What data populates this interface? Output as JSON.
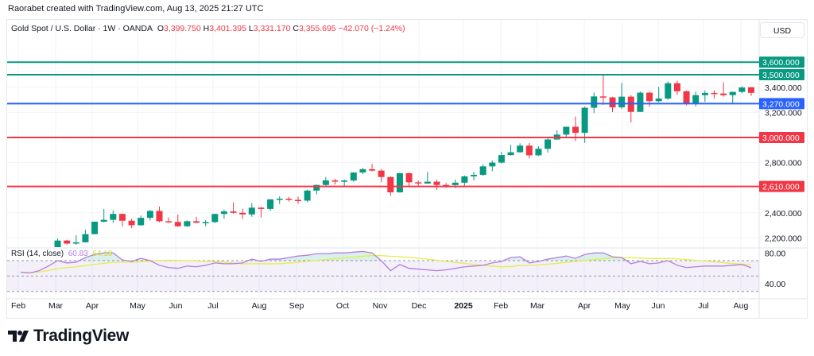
{
  "credit": "Raorabet created with TradingView.com, Aug 13, 2025 21:27 UTC",
  "legend": {
    "symbol": "Gold Spot / U.S. Dollar · 1W · OANDA",
    "o_label": "O",
    "o": "3,399.750",
    "h_label": "H",
    "h": "3,401.395",
    "l_label": "L",
    "l": "3,331.170",
    "c_label": "C",
    "c": "3,355.695",
    "change": "−42.070 (−1.24%)"
  },
  "currency_button": "USD",
  "rsi_legend": {
    "label": "RSI (14, close)",
    "value": "60.83",
    "ma_value": "64.18"
  },
  "logo_text": "TradingView",
  "colors": {
    "bull": "#089981",
    "bear": "#f23645",
    "blue": "#2962ff",
    "rsi": "#b57ee0",
    "rsi_ma": "#e4ee4a"
  },
  "chart_data": {
    "type": "candlestick",
    "interval": "1W",
    "price_ticks": [
      "2,200.000",
      "2,400.000",
      "2,800.000",
      "3,200.000",
      "3,400.000"
    ],
    "price_tick_values": [
      2200,
      2400,
      2800,
      3200,
      3400
    ],
    "levels": [
      {
        "value": 3600,
        "label": "3,600.000",
        "color": "#089981"
      },
      {
        "value": 3500,
        "label": "3,500.000",
        "color": "#089981"
      },
      {
        "value": 3270,
        "label": "3,270.000",
        "color": "#2962ff"
      },
      {
        "value": 3000,
        "label": "3,000.000",
        "color": "#f23645"
      },
      {
        "value": 2610,
        "label": "2,610.000",
        "color": "#f23645"
      }
    ],
    "time_labels": [
      "Feb",
      "Mar",
      "Apr",
      "May",
      "Jun",
      "Jul",
      "Aug",
      "Sep",
      "Oct",
      "Nov",
      "Dec",
      "2025",
      "Feb",
      "Mar",
      "Apr",
      "May",
      "Jun",
      "Jul",
      "Aug"
    ],
    "rsi_ticks": [
      "80.00",
      "40.00"
    ],
    "candles_ohlc": [
      [
        2039,
        2050,
        2015,
        2024
      ],
      [
        2024,
        2032,
        1984,
        2013
      ],
      [
        2013,
        2041,
        2010,
        2035
      ],
      [
        2035,
        2088,
        2024,
        2083
      ],
      [
        2083,
        2195,
        2079,
        2179
      ],
      [
        2179,
        2185,
        2146,
        2155
      ],
      [
        2155,
        2222,
        2146,
        2165
      ],
      [
        2165,
        2265,
        2163,
        2230
      ],
      [
        2230,
        2330,
        2228,
        2329
      ],
      [
        2329,
        2431,
        2325,
        2344
      ],
      [
        2344,
        2417,
        2320,
        2391
      ],
      [
        2391,
        2395,
        2291,
        2337
      ],
      [
        2337,
        2354,
        2277,
        2301
      ],
      [
        2301,
        2378,
        2296,
        2360
      ],
      [
        2360,
        2422,
        2339,
        2415
      ],
      [
        2415,
        2450,
        2325,
        2333
      ],
      [
        2333,
        2364,
        2320,
        2327
      ],
      [
        2327,
        2387,
        2286,
        2293
      ],
      [
        2293,
        2340,
        2287,
        2333
      ],
      [
        2333,
        2368,
        2316,
        2321
      ],
      [
        2321,
        2340,
        2293,
        2326
      ],
      [
        2326,
        2392,
        2318,
        2391
      ],
      [
        2391,
        2424,
        2353,
        2411
      ],
      [
        2411,
        2483,
        2394,
        2400
      ],
      [
        2400,
        2433,
        2353,
        2387
      ],
      [
        2387,
        2477,
        2368,
        2441
      ],
      [
        2441,
        2447,
        2364,
        2431
      ],
      [
        2431,
        2509,
        2415,
        2507
      ],
      [
        2507,
        2531,
        2470,
        2512
      ],
      [
        2512,
        2528,
        2490,
        2503
      ],
      [
        2503,
        2529,
        2472,
        2497
      ],
      [
        2497,
        2585,
        2485,
        2577
      ],
      [
        2577,
        2625,
        2547,
        2622
      ],
      [
        2622,
        2685,
        2615,
        2658
      ],
      [
        2658,
        2672,
        2625,
        2653
      ],
      [
        2653,
        2665,
        2603,
        2657
      ],
      [
        2657,
        2722,
        2648,
        2721
      ],
      [
        2721,
        2758,
        2708,
        2747
      ],
      [
        2747,
        2790,
        2730,
        2736
      ],
      [
        2736,
        2750,
        2643,
        2685
      ],
      [
        2685,
        2689,
        2536,
        2563
      ],
      [
        2563,
        2721,
        2560,
        2715
      ],
      [
        2715,
        2721,
        2605,
        2643
      ],
      [
        2643,
        2657,
        2613,
        2633
      ],
      [
        2633,
        2726,
        2632,
        2648
      ],
      [
        2648,
        2664,
        2583,
        2622
      ],
      [
        2622,
        2638,
        2598,
        2621
      ],
      [
        2621,
        2665,
        2596,
        2640
      ],
      [
        2640,
        2697,
        2614,
        2690
      ],
      [
        2690,
        2725,
        2657,
        2702
      ],
      [
        2702,
        2786,
        2695,
        2770
      ],
      [
        2770,
        2817,
        2731,
        2800
      ],
      [
        2800,
        2886,
        2791,
        2860
      ],
      [
        2860,
        2942,
        2855,
        2882
      ],
      [
        2882,
        2954,
        2880,
        2935
      ],
      [
        2935,
        2956,
        2832,
        2858
      ],
      [
        2858,
        2930,
        2853,
        2910
      ],
      [
        2910,
        3004,
        2880,
        2984
      ],
      [
        2984,
        3057,
        2982,
        3023
      ],
      [
        3023,
        3086,
        3000,
        3085
      ],
      [
        3085,
        3168,
        2971,
        3037
      ],
      [
        3037,
        3245,
        2957,
        3237
      ],
      [
        3237,
        3358,
        3194,
        3327
      ],
      [
        3327,
        3500,
        3260,
        3319
      ],
      [
        3319,
        3324,
        3202,
        3240
      ],
      [
        3240,
        3435,
        3228,
        3325
      ],
      [
        3325,
        3338,
        3120,
        3204
      ],
      [
        3204,
        3366,
        3204,
        3357
      ],
      [
        3357,
        3365,
        3245,
        3289
      ],
      [
        3289,
        3403,
        3281,
        3310
      ],
      [
        3310,
        3446,
        3300,
        3432
      ],
      [
        3432,
        3452,
        3340,
        3368
      ],
      [
        3368,
        3375,
        3255,
        3274
      ],
      [
        3274,
        3365,
        3247,
        3337
      ],
      [
        3337,
        3375,
        3283,
        3355
      ],
      [
        3355,
        3375,
        3310,
        3350
      ],
      [
        3350,
        3439,
        3325,
        3337
      ],
      [
        3337,
        3363,
        3268,
        3363
      ],
      [
        3363,
        3409,
        3352,
        3398
      ],
      [
        3399.75,
        3401.395,
        3331.17,
        3355.695
      ]
    ],
    "rsi": [
      55,
      54,
      57,
      63,
      70,
      67,
      68,
      74,
      78,
      80,
      80,
      71,
      69,
      73,
      70,
      64,
      61,
      60,
      63,
      62,
      64,
      67,
      66,
      66,
      67,
      72,
      69,
      72,
      72,
      74,
      76,
      77,
      79,
      79,
      80,
      80,
      81,
      82,
      80,
      70,
      57,
      65,
      60,
      59,
      58,
      57,
      58,
      60,
      62,
      63,
      64,
      67,
      69,
      74,
      75,
      67,
      69,
      72,
      74,
      76,
      73,
      78,
      80,
      80,
      75,
      74,
      66,
      69,
      66,
      67,
      70,
      64,
      61,
      62,
      63,
      63,
      63,
      64,
      65,
      60.83
    ],
    "rsi_levels": [
      70,
      50,
      30
    ]
  }
}
